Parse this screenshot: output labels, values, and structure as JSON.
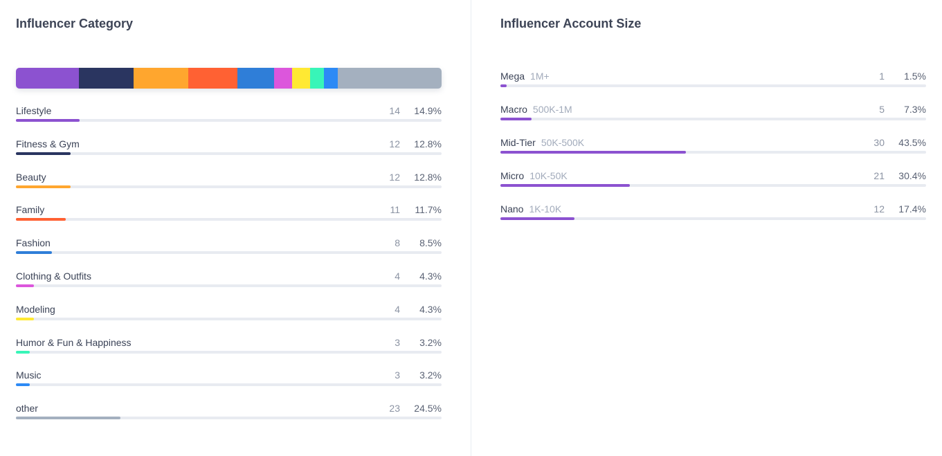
{
  "category_panel": {
    "title": "Influencer Category",
    "items": [
      {
        "label": "Lifestyle",
        "count": "14",
        "percent": "14.9%",
        "fraction": 0.149,
        "color": "#8c52d0"
      },
      {
        "label": "Fitness & Gym",
        "count": "12",
        "percent": "12.8%",
        "fraction": 0.128,
        "color": "#2a3560"
      },
      {
        "label": "Beauty",
        "count": "12",
        "percent": "12.8%",
        "fraction": 0.128,
        "color": "#ffa62e"
      },
      {
        "label": "Family",
        "count": "11",
        "percent": "11.7%",
        "fraction": 0.117,
        "color": "#ff6133"
      },
      {
        "label": "Fashion",
        "count": "8",
        "percent": "8.5%",
        "fraction": 0.085,
        "color": "#2f7ed8"
      },
      {
        "label": "Clothing & Outfits",
        "count": "4",
        "percent": "4.3%",
        "fraction": 0.043,
        "color": "#dc56dc"
      },
      {
        "label": "Modeling",
        "count": "4",
        "percent": "4.3%",
        "fraction": 0.043,
        "color": "#ffe933"
      },
      {
        "label": "Humor & Fun & Happiness",
        "count": "3",
        "percent": "3.2%",
        "fraction": 0.032,
        "color": "#38f5b8"
      },
      {
        "label": "Music",
        "count": "3",
        "percent": "3.2%",
        "fraction": 0.032,
        "color": "#2d8af5"
      },
      {
        "label": "other",
        "count": "23",
        "percent": "24.5%",
        "fraction": 0.245,
        "color": "#a4b0bf"
      }
    ]
  },
  "size_panel": {
    "title": "Influencer Account Size",
    "items": [
      {
        "label": "Mega",
        "range": "1M+",
        "count": "1",
        "percent": "1.5%",
        "fraction": 0.015,
        "color": "#8c52d0"
      },
      {
        "label": "Macro",
        "range": "500K-1M",
        "count": "5",
        "percent": "7.3%",
        "fraction": 0.073,
        "color": "#8c52d0"
      },
      {
        "label": "Mid-Tier",
        "range": "50K-500K",
        "count": "30",
        "percent": "43.5%",
        "fraction": 0.435,
        "color": "#8c52d0"
      },
      {
        "label": "Micro",
        "range": "10K-50K",
        "count": "21",
        "percent": "30.4%",
        "fraction": 0.304,
        "color": "#8c52d0"
      },
      {
        "label": "Nano",
        "range": "1K-10K",
        "count": "12",
        "percent": "17.4%",
        "fraction": 0.174,
        "color": "#8c52d0"
      }
    ]
  }
}
